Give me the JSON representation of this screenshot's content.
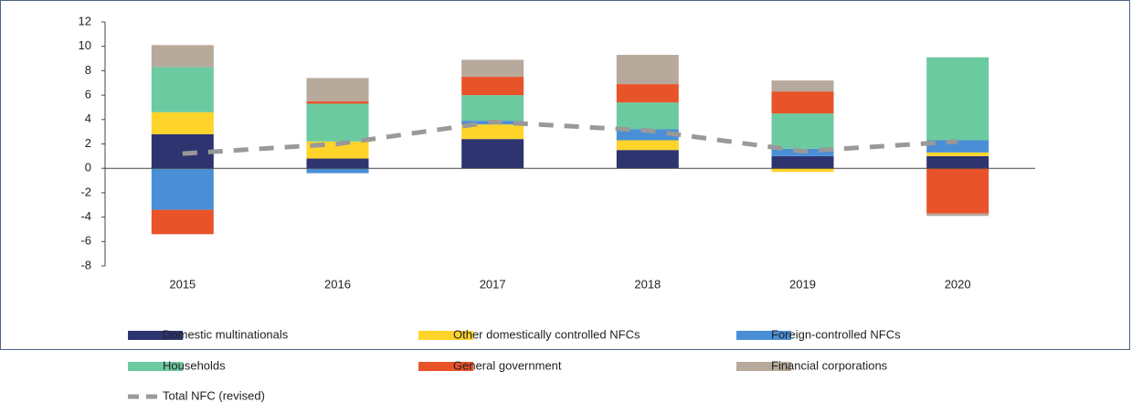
{
  "chart_data": {
    "type": "bar",
    "stacked": true,
    "categories": [
      "2015",
      "2016",
      "2017",
      "2018",
      "2019",
      "2020"
    ],
    "ylim": [
      -8,
      12
    ],
    "yticks": [
      -8,
      -6,
      -4,
      -2,
      0,
      2,
      4,
      6,
      8,
      10,
      12
    ],
    "series": [
      {
        "name": "Domestic multinationals",
        "color": "#2e3470",
        "values": [
          2.8,
          0.8,
          2.4,
          1.5,
          1.0,
          1.0
        ]
      },
      {
        "name": "Other domestically controlled NFCs",
        "color": "#ffd42a",
        "values": [
          1.8,
          1.4,
          1.2,
          0.8,
          -0.3,
          0.3
        ]
      },
      {
        "name": "Foreign-controlled NFCs",
        "color": "#4a8fd6",
        "values": [
          -3.4,
          -0.4,
          0.3,
          0.9,
          0.6,
          1.0
        ]
      },
      {
        "name": "Households",
        "color": "#6ccaa0",
        "values": [
          3.7,
          3.1,
          2.1,
          2.2,
          2.9,
          6.8
        ]
      },
      {
        "name": "General government",
        "color": "#e8532a",
        "values": [
          -2.0,
          0.2,
          1.5,
          1.5,
          1.8,
          -3.7
        ]
      },
      {
        "name": "Financial corporations",
        "color": "#b7a99b",
        "values": [
          1.8,
          1.9,
          1.4,
          2.4,
          0.9,
          -0.2
        ]
      },
      {
        "name": "Total NFC (revised)",
        "type": "line",
        "color": "#999999",
        "dashed": true,
        "values": [
          1.2,
          2.0,
          3.8,
          3.1,
          1.4,
          2.2
        ]
      }
    ]
  }
}
